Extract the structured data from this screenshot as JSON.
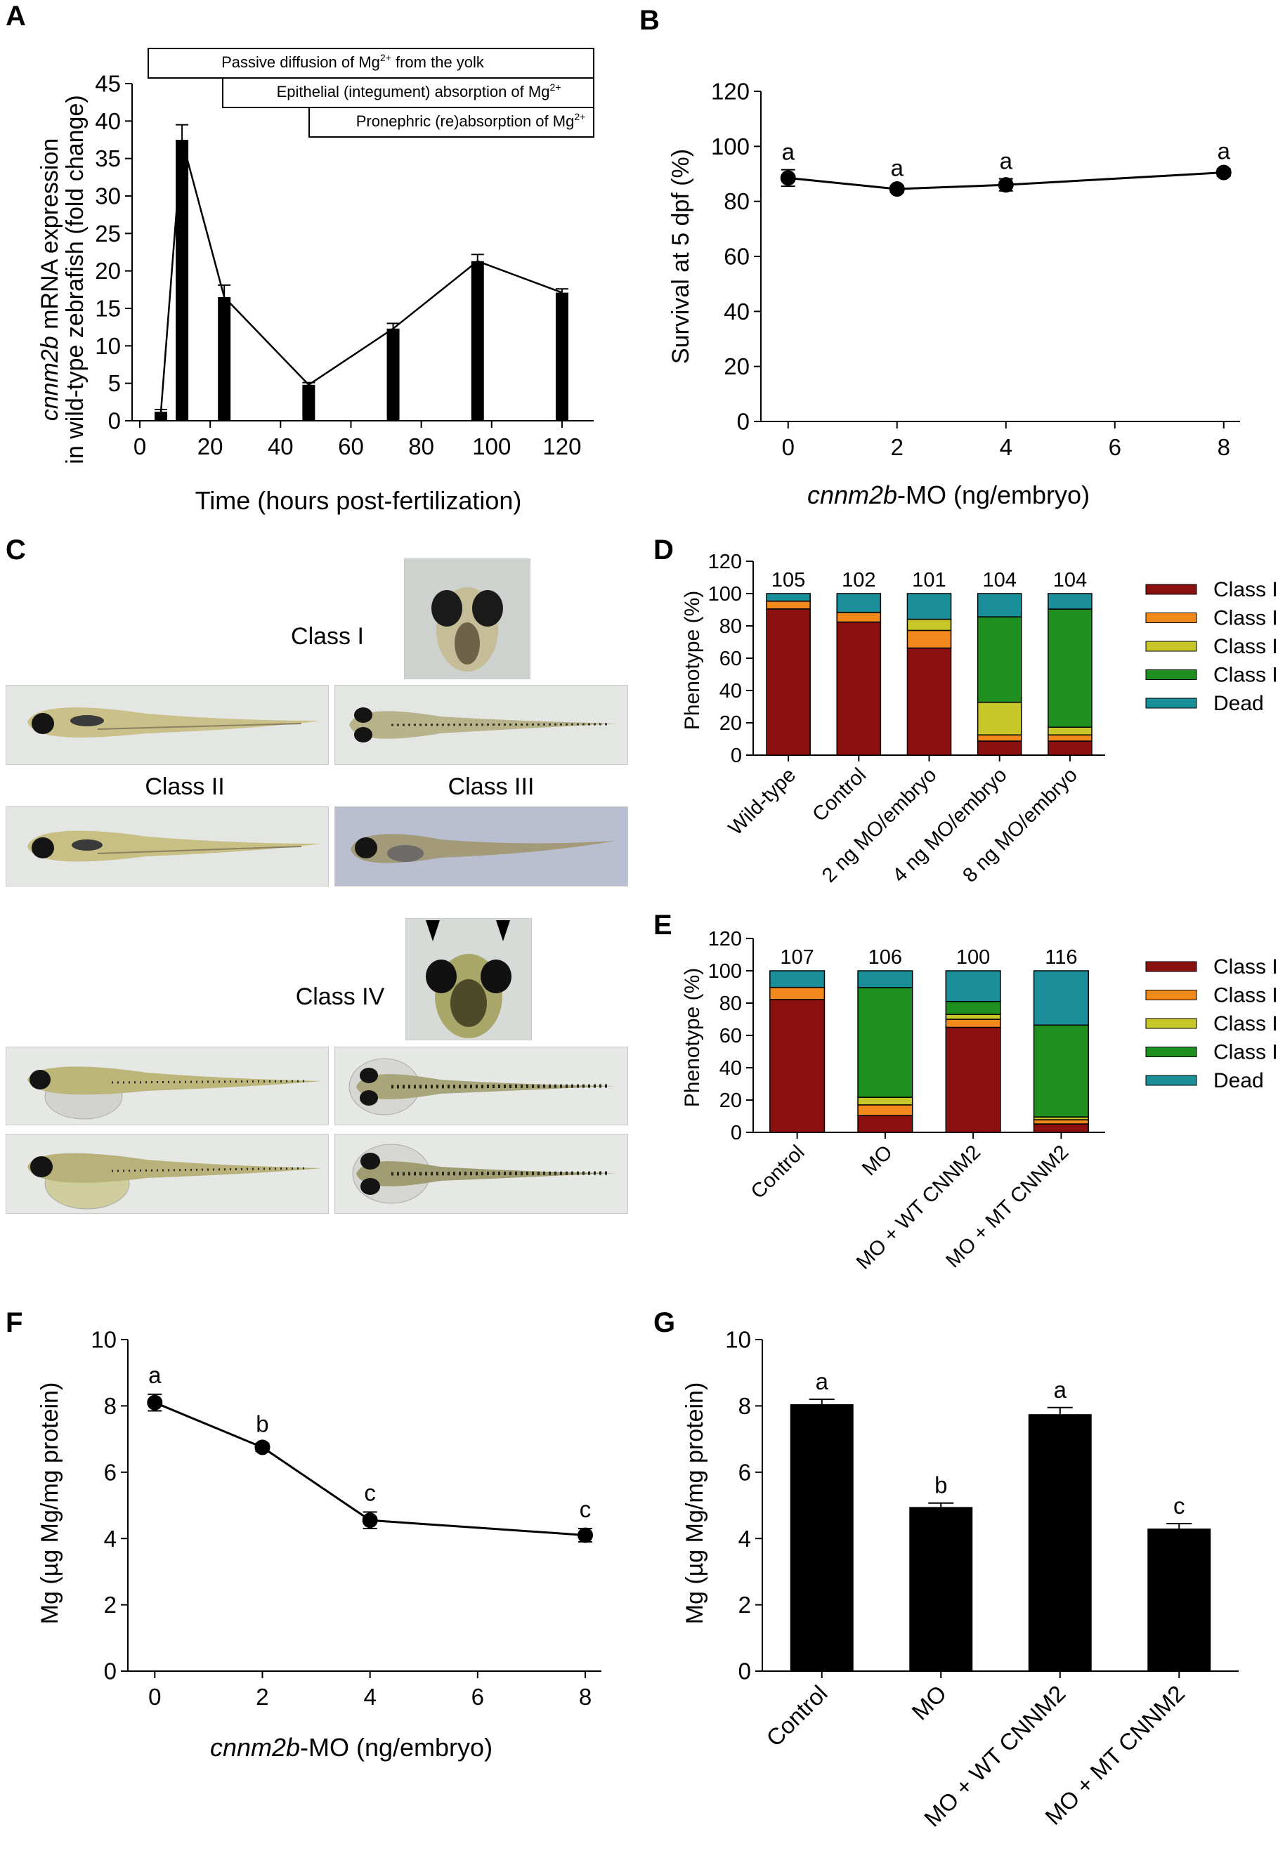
{
  "colors": {
    "black": "#000000",
    "class_i": "#8b1010",
    "class_ii": "#f2891d",
    "class_iii": "#c7c72a",
    "class_iv": "#1f8f1f",
    "dead": "#1a8f9a",
    "photo_bg": "#dfe2e0",
    "photo_bg_blue": "#b9bfd1"
  },
  "panel_letters": [
    "A",
    "B",
    "C",
    "D",
    "E",
    "F",
    "G"
  ],
  "panel_c": {
    "labels": [
      "Class I",
      "Class II",
      "Class III",
      "Class IV"
    ]
  },
  "chart_data": [
    {
      "panel": "A",
      "type": "bar",
      "ylabel_italic": "cnnm2b",
      "ylabel_line1_rest": " mRNA expression",
      "ylabel_line2": "in wild-type zebrafish (fold change)",
      "xlabel": "Time (hours post-fertilization)",
      "xlim": [
        0,
        128
      ],
      "ylim": [
        0,
        45
      ],
      "xticks": [
        0,
        20,
        40,
        60,
        80,
        100,
        120
      ],
      "yticks": [
        0,
        5,
        10,
        15,
        20,
        25,
        30,
        35,
        40,
        45
      ],
      "x": [
        6,
        12,
        24,
        48,
        72,
        96,
        120
      ],
      "values": [
        1.2,
        37.5,
        16.5,
        4.8,
        12.3,
        21.3,
        17.1
      ],
      "errors": [
        0.3,
        2.0,
        1.6,
        0.3,
        0.7,
        0.9,
        0.5
      ],
      "annotations": [
        {
          "text": "Passive diffusion of Mg",
          "sup": "2+",
          "tail": " from the yolk",
          "x_start": 0,
          "x_end": 128
        },
        {
          "text": "Epithelial (integument) absorption of Mg",
          "sup": "2+",
          "tail": "",
          "x_start": 48,
          "x_end": 128
        },
        {
          "text": "Pronephric (re)absorption of Mg",
          "sup": "2+",
          "tail": "",
          "x_start": 96,
          "x_end": 128
        }
      ]
    },
    {
      "panel": "B",
      "type": "line",
      "ylabel": "Survival at 5 dpf (%)",
      "xlabel_italic": "cnnm2b",
      "xlabel_rest": "-MO (ng/embryo)",
      "xlim": [
        -0.5,
        8.3
      ],
      "ylim": [
        0,
        120
      ],
      "xticks": [
        0,
        2,
        4,
        6,
        8
      ],
      "yticks": [
        0,
        20,
        40,
        60,
        80,
        100,
        120
      ],
      "x": [
        0,
        2,
        4,
        8
      ],
      "values": [
        88.5,
        84.5,
        86.0,
        90.5
      ],
      "errors": [
        3.0,
        1.2,
        2.2,
        1.3
      ],
      "letters": [
        "a",
        "a",
        "a",
        "a"
      ]
    },
    {
      "panel": "D",
      "type": "bar",
      "stacked": true,
      "ylabel": "Phenotype (%)",
      "ylim": [
        0,
        120
      ],
      "yticks": [
        0,
        20,
        40,
        60,
        80,
        100,
        120
      ],
      "categories": [
        "Wild-type",
        "Control",
        "2 ng MO/embryo",
        "4 ng MO/embryo",
        "8 ng MO/embryo"
      ],
      "n_labels": [
        "105",
        "102",
        "101",
        "104",
        "104"
      ],
      "legend": [
        "Class I",
        "Class II",
        "Class III",
        "Class IV",
        "Dead"
      ],
      "legend_position": "right",
      "series": [
        {
          "name": "Class I",
          "values": [
            90.5,
            82.4,
            66.3,
            8.7,
            8.7
          ]
        },
        {
          "name": "Class II",
          "values": [
            4.8,
            5.9,
            10.9,
            3.8,
            3.8
          ]
        },
        {
          "name": "Class III",
          "values": [
            0,
            0,
            6.9,
            20.2,
            4.8
          ]
        },
        {
          "name": "Class IV",
          "values": [
            0,
            0,
            0,
            52.9,
            73.1
          ]
        },
        {
          "name": "Dead",
          "values": [
            4.7,
            11.7,
            15.9,
            14.4,
            9.6
          ]
        }
      ]
    },
    {
      "panel": "E",
      "type": "bar",
      "stacked": true,
      "ylabel": "Phenotype (%)",
      "ylim": [
        0,
        120
      ],
      "yticks": [
        0,
        20,
        40,
        60,
        80,
        100,
        120
      ],
      "categories": [
        "Control",
        "MO",
        "MO + WT CNNM2",
        "MO + MT CNNM2"
      ],
      "n_labels": [
        "107",
        "106",
        "100",
        "116"
      ],
      "legend": [
        "Class I",
        "Class II",
        "Class III",
        "Class IV",
        "Dead"
      ],
      "legend_position": "right",
      "series": [
        {
          "name": "Class I",
          "values": [
            82.2,
            10.4,
            65.0,
            5.2
          ]
        },
        {
          "name": "Class II",
          "values": [
            7.5,
            6.6,
            5.0,
            2.6
          ]
        },
        {
          "name": "Class III",
          "values": [
            0,
            4.7,
            3.0,
            1.7
          ]
        },
        {
          "name": "Class IV",
          "values": [
            0,
            67.9,
            8.0,
            56.9
          ]
        },
        {
          "name": "Dead",
          "values": [
            10.3,
            10.4,
            19.0,
            33.6
          ]
        }
      ]
    },
    {
      "panel": "F",
      "type": "line",
      "ylabel": "Mg (µg Mg/mg protein)",
      "xlabel_italic": "cnnm2b",
      "xlabel_rest": "-MO (ng/embryo)",
      "xlim": [
        -0.5,
        8.3
      ],
      "ylim": [
        0,
        10
      ],
      "xticks": [
        0,
        2,
        4,
        6,
        8
      ],
      "yticks": [
        0,
        2,
        4,
        6,
        8,
        10
      ],
      "x": [
        0,
        2,
        4,
        8
      ],
      "values": [
        8.1,
        6.75,
        4.55,
        4.1
      ],
      "errors": [
        0.25,
        0.12,
        0.25,
        0.2
      ],
      "letters": [
        "a",
        "b",
        "c",
        "c"
      ]
    },
    {
      "panel": "G",
      "type": "bar",
      "ylabel": "Mg (µg Mg/mg protein)",
      "ylim": [
        0,
        10
      ],
      "yticks": [
        0,
        2,
        4,
        6,
        8,
        10
      ],
      "categories": [
        "Control",
        "MO",
        "MO + WT CNNM2",
        "MO + MT CNNM2"
      ],
      "values": [
        8.05,
        4.95,
        7.75,
        4.3
      ],
      "errors": [
        0.15,
        0.12,
        0.2,
        0.15
      ],
      "letters": [
        "a",
        "b",
        "a",
        "c"
      ]
    }
  ]
}
